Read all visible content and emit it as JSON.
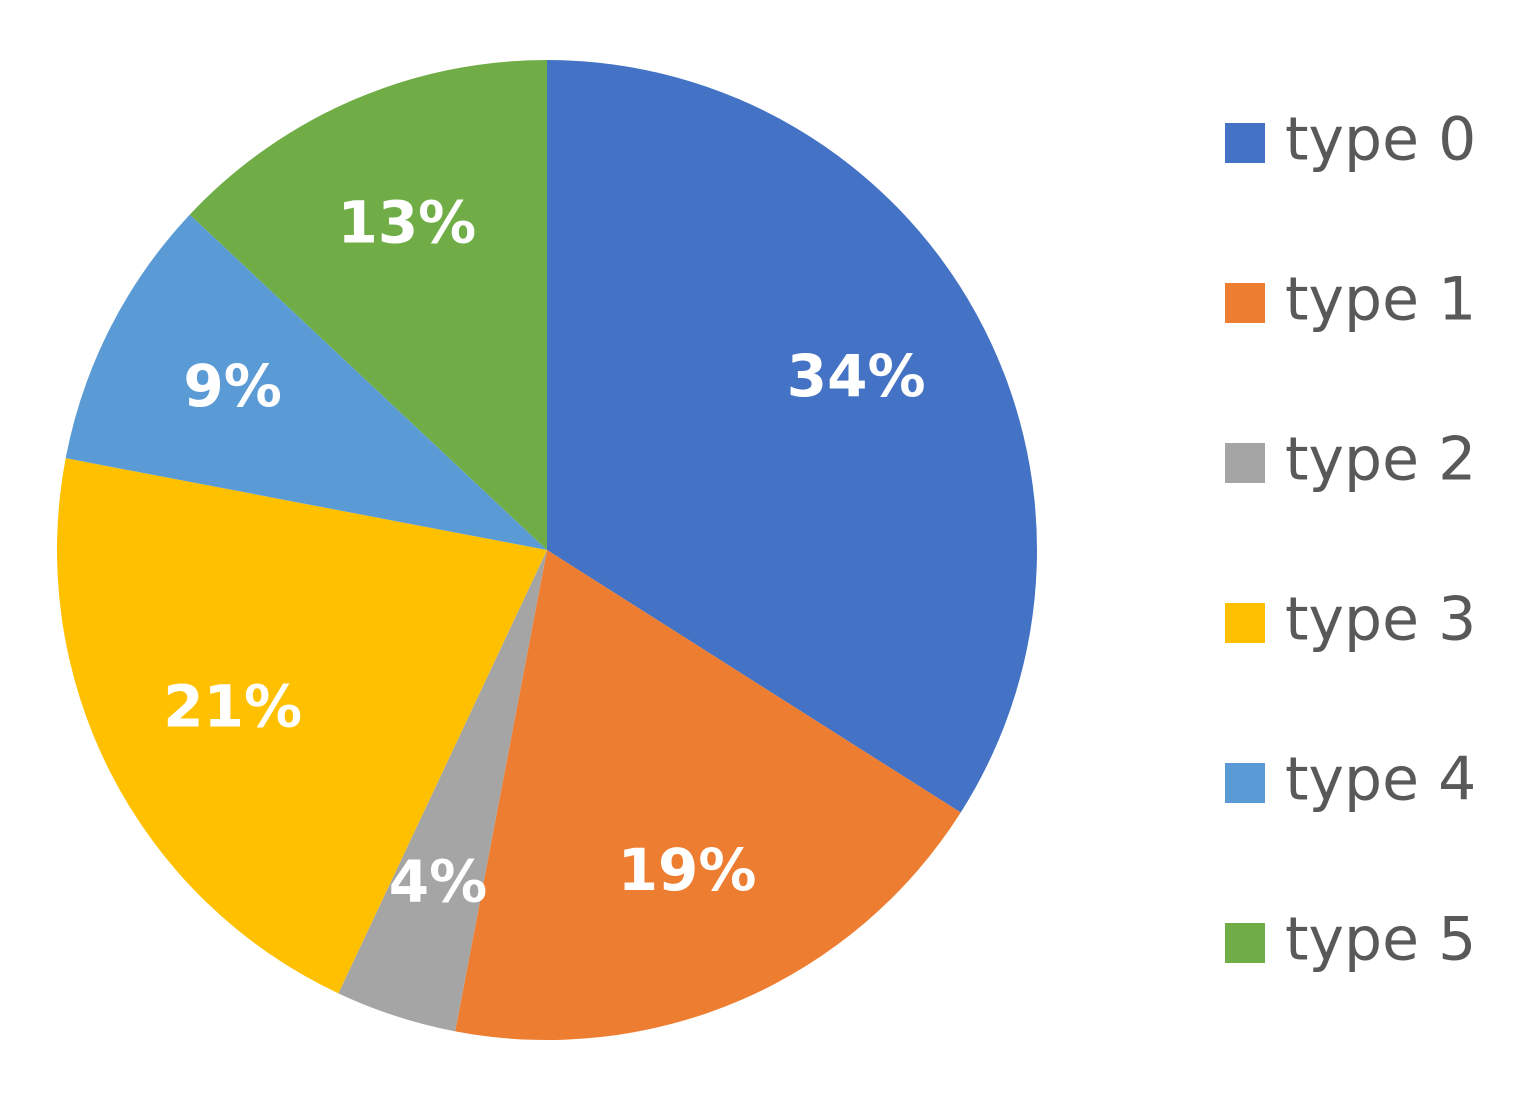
{
  "chart_data": {
    "type": "pie",
    "categories": [
      "type 0",
      "type 1",
      "type 2",
      "type 3",
      "type 4",
      "type 5"
    ],
    "values": [
      34,
      19,
      4,
      21,
      9,
      13
    ],
    "value_labels": [
      "34%",
      "19%",
      "4%",
      "21%",
      "9%",
      "13%"
    ],
    "colors": [
      "#4472c4",
      "#ed7d31",
      "#a5a5a5",
      "#ffc000",
      "#5b9bd5",
      "#70ad47"
    ],
    "legend": "right"
  }
}
